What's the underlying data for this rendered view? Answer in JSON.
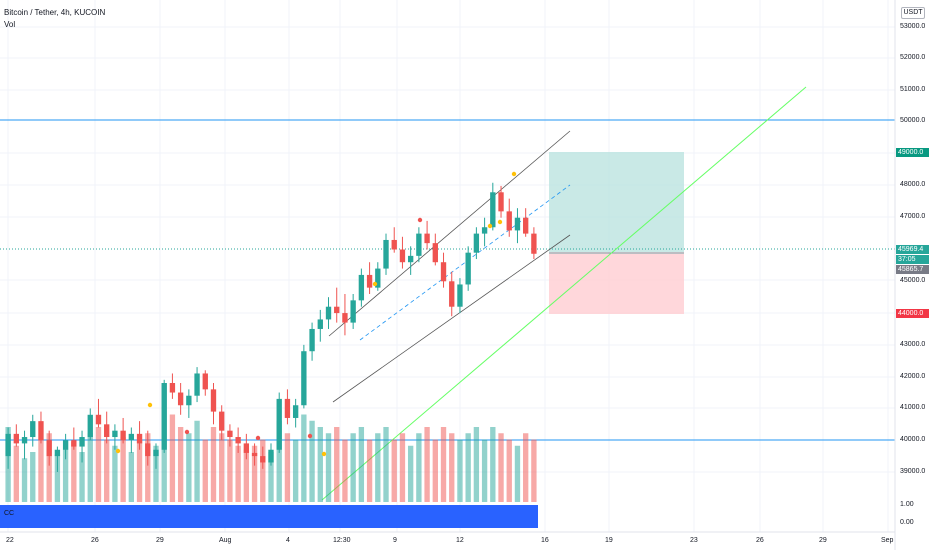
{
  "header": {
    "title": "Bitcoin / Tether, 4h, KUCOIN",
    "volume_label": "Vol",
    "currency": "USDT"
  },
  "price_axis": {
    "ticks": [
      "53000.0",
      "52000.0",
      "51000.0",
      "50000.0",
      "48000.0",
      "47000.0",
      "45000.0",
      "43000.0",
      "42000.0",
      "41000.0",
      "40000.0",
      "39000.0"
    ],
    "indicator_ticks": [
      "1.00",
      "0.00"
    ]
  },
  "time_axis": {
    "labels": [
      "22",
      "26",
      "29",
      "Aug",
      "4",
      "12:30",
      "9",
      "12",
      "16",
      "19",
      "23",
      "26",
      "29",
      "Sep"
    ]
  },
  "price_tags": {
    "target": "49000.0",
    "current": "45969.4",
    "countdown": "37:05",
    "entry": "45865.7",
    "stop": "44000.0"
  },
  "indicator_label": "CC",
  "colors": {
    "up": "#26a69a",
    "down": "#ef5350",
    "profit_zone": "#b2dfdb",
    "loss_zone": "#ffcdd2",
    "trend_line": "#66ff66",
    "channel": "#555555",
    "level_line": "#2196f3",
    "indicator_bar": "#2962ff",
    "signal_dot": "#ffc107"
  },
  "chart_data": {
    "type": "candlestick",
    "symbol": "Bitcoin / Tether",
    "interval": "4h",
    "exchange": "KUCOIN",
    "ylim": [
      39000,
      53000
    ],
    "horizontal_levels": [
      50000,
      40000
    ],
    "position": {
      "target": 49000,
      "entry": 45865.7,
      "stop": 44000,
      "current": 45969.4
    },
    "ohlc": [
      [
        39500,
        40400,
        39100,
        40200
      ],
      [
        40200,
        40500,
        39800,
        39900
      ],
      [
        39900,
        40300,
        39400,
        40100
      ],
      [
        40100,
        40800,
        39800,
        40600
      ],
      [
        40600,
        40900,
        39900,
        40000
      ],
      [
        40000,
        40300,
        39200,
        39500
      ],
      [
        39500,
        39800,
        39000,
        39700
      ],
      [
        39700,
        40200,
        39400,
        40000
      ],
      [
        40000,
        40400,
        39700,
        39800
      ],
      [
        39800,
        40300,
        39300,
        40100
      ],
      [
        40100,
        41000,
        40000,
        40800
      ],
      [
        40800,
        41300,
        40400,
        40500
      ],
      [
        40500,
        40900,
        39900,
        40100
      ],
      [
        40100,
        40500,
        39700,
        40300
      ],
      [
        40300,
        40700,
        39900,
        40000
      ],
      [
        40000,
        40400,
        39600,
        40200
      ],
      [
        40200,
        40600,
        39700,
        39900
      ],
      [
        39900,
        40300,
        39200,
        39500
      ],
      [
        39500,
        39900,
        39100,
        39700
      ],
      [
        39700,
        41900,
        39600,
        41800
      ],
      [
        41800,
        42100,
        41300,
        41500
      ],
      [
        41500,
        41800,
        40800,
        41100
      ],
      [
        41100,
        41600,
        40700,
        41400
      ],
      [
        41400,
        42300,
        41200,
        42100
      ],
      [
        42100,
        42200,
        41400,
        41600
      ],
      [
        41600,
        41800,
        40500,
        40900
      ],
      [
        40900,
        41100,
        40000,
        40300
      ],
      [
        40300,
        40500,
        39800,
        40100
      ],
      [
        40100,
        40400,
        39600,
        39900
      ],
      [
        39900,
        40200,
        39400,
        39600
      ],
      [
        39600,
        39900,
        39200,
        39500
      ],
      [
        39500,
        39800,
        39100,
        39300
      ],
      [
        39300,
        39900,
        39200,
        39700
      ],
      [
        39700,
        41500,
        39600,
        41300
      ],
      [
        41300,
        41600,
        40500,
        40700
      ],
      [
        40700,
        41300,
        40400,
        41100
      ],
      [
        41100,
        43000,
        41000,
        42800
      ],
      [
        42800,
        43700,
        42500,
        43500
      ],
      [
        43500,
        44100,
        43100,
        43800
      ],
      [
        43800,
        44500,
        43500,
        44200
      ],
      [
        44200,
        44800,
        43700,
        44000
      ],
      [
        44000,
        44600,
        43300,
        43700
      ],
      [
        43700,
        44600,
        43500,
        44400
      ],
      [
        44400,
        45400,
        44200,
        45200
      ],
      [
        45200,
        45600,
        44600,
        44800
      ],
      [
        44800,
        45600,
        44700,
        45400
      ],
      [
        45400,
        46500,
        45200,
        46300
      ],
      [
        46300,
        46700,
        45900,
        46000
      ],
      [
        46000,
        46400,
        45400,
        45600
      ],
      [
        45600,
        46100,
        45200,
        45800
      ],
      [
        45800,
        46700,
        45600,
        46500
      ],
      [
        46500,
        46900,
        46000,
        46200
      ],
      [
        46200,
        46500,
        45500,
        45600
      ],
      [
        45600,
        45900,
        44800,
        45000
      ],
      [
        45000,
        45300,
        43900,
        44200
      ],
      [
        44200,
        45100,
        44000,
        44900
      ],
      [
        44900,
        46100,
        44700,
        45900
      ],
      [
        45900,
        46700,
        45700,
        46500
      ],
      [
        46500,
        47000,
        46100,
        46700
      ],
      [
        46700,
        48100,
        46600,
        47800
      ],
      [
        47800,
        48000,
        47000,
        47200
      ],
      [
        47200,
        47600,
        46400,
        46600
      ],
      [
        46600,
        47300,
        46200,
        47000
      ],
      [
        47000,
        47300,
        46400,
        46500
      ],
      [
        46500,
        46700,
        45700,
        45866
      ]
    ],
    "volume": [
      0.6,
      0.45,
      0.35,
      0.4,
      0.5,
      0.55,
      0.38,
      0.42,
      0.48,
      0.4,
      0.55,
      0.6,
      0.5,
      0.45,
      0.52,
      0.4,
      0.5,
      0.55,
      0.45,
      0.95,
      0.7,
      0.6,
      0.55,
      0.65,
      0.5,
      0.6,
      0.55,
      0.5,
      0.45,
      0.42,
      0.45,
      0.5,
      0.4,
      0.65,
      0.55,
      0.5,
      0.7,
      0.65,
      0.6,
      0.55,
      0.6,
      0.5,
      0.55,
      0.6,
      0.5,
      0.55,
      0.6,
      0.5,
      0.55,
      0.45,
      0.55,
      0.6,
      0.5,
      0.6,
      0.55,
      0.5,
      0.55,
      0.6,
      0.5,
      0.6,
      0.55,
      0.5,
      0.45,
      0.55,
      0.5
    ]
  }
}
